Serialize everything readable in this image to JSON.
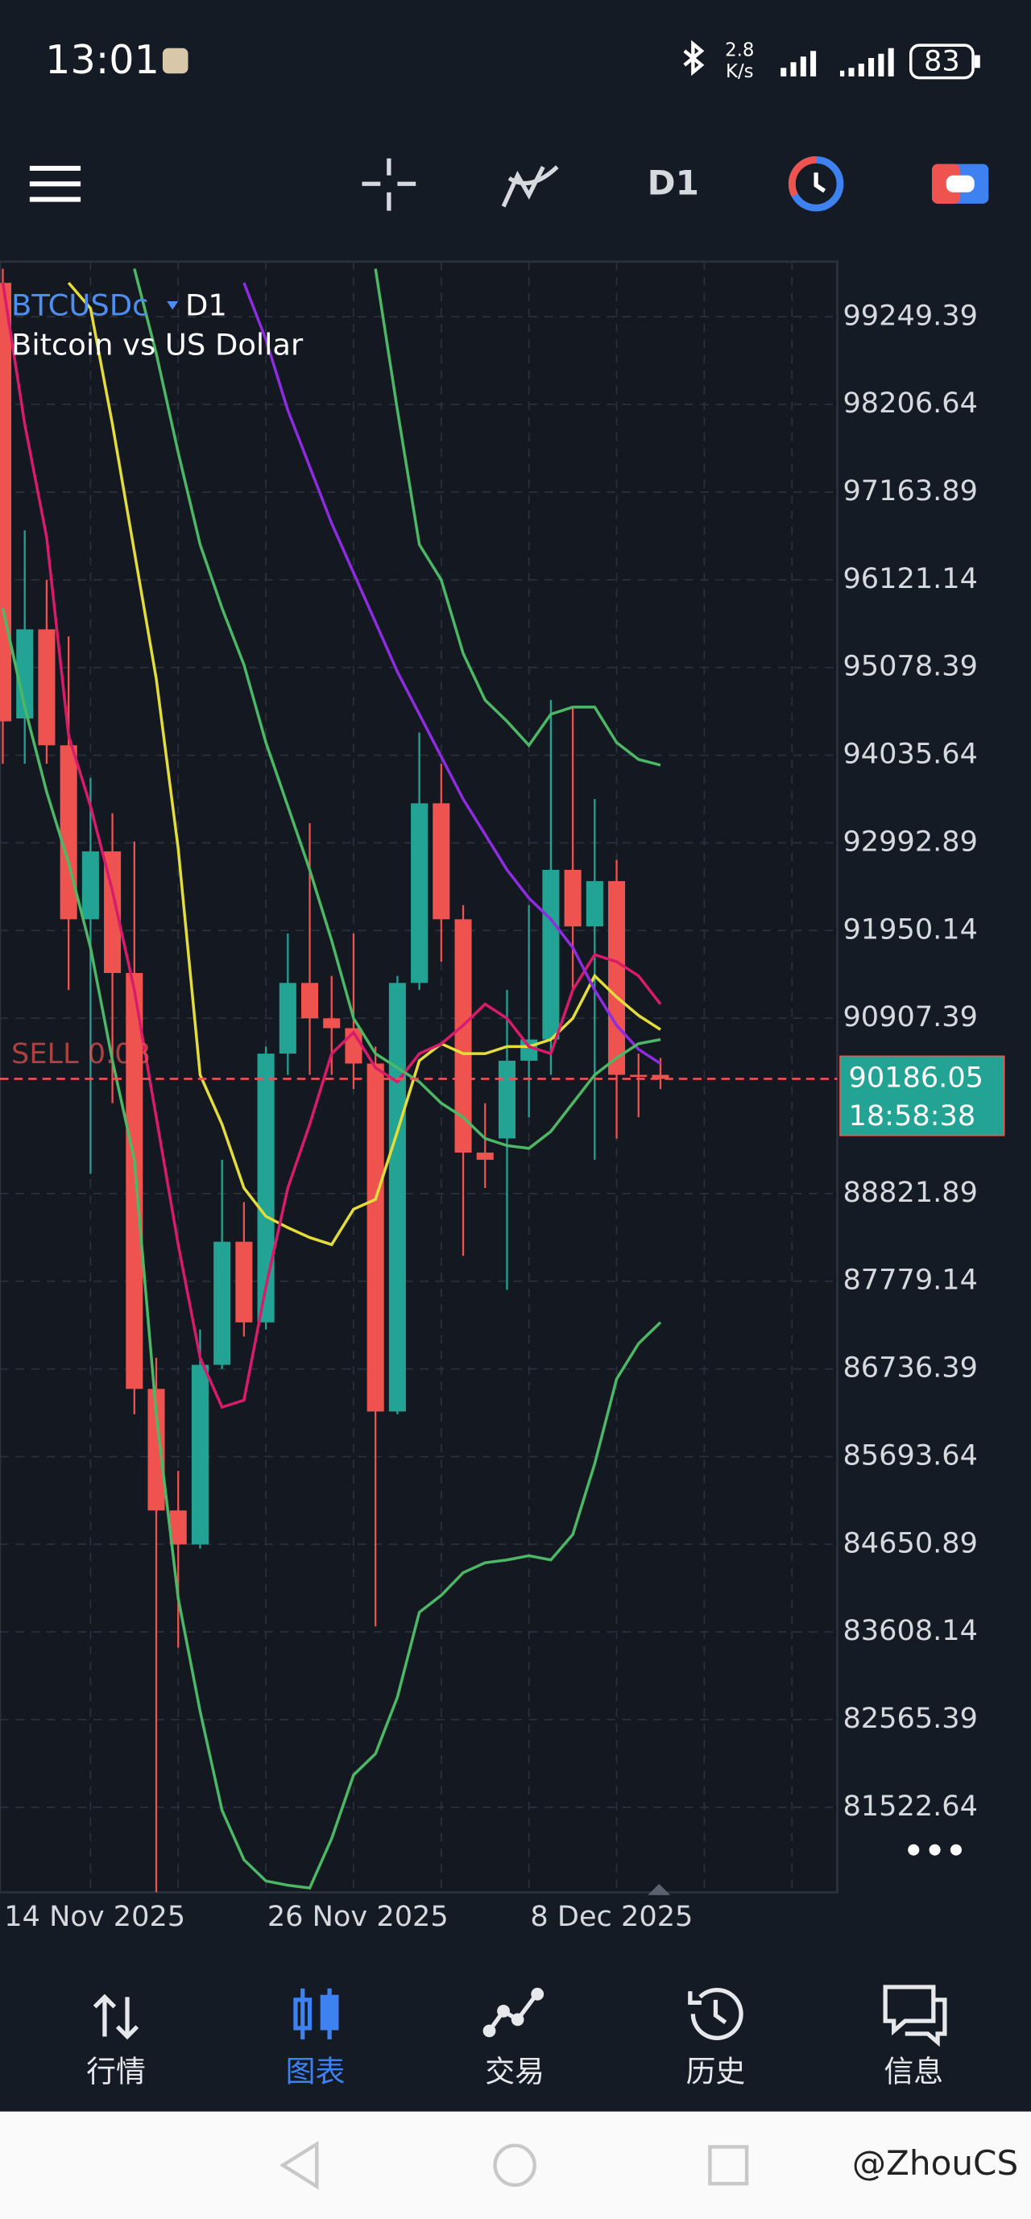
{
  "status_bar": {
    "time": "13:01",
    "net_speed": "2.8",
    "net_unit": "K/s",
    "battery": "83"
  },
  "toolbar": {
    "timeframe": "D1"
  },
  "chart_data": {
    "type": "candlestick",
    "symbol": "BTCUSDc",
    "timeframe": "D1",
    "description": "Bitcoin vs US Dollar",
    "categories": [
      "14 Nov 2025",
      null,
      null,
      null,
      null,
      null,
      null,
      null,
      null,
      null,
      null,
      null,
      "26 Nov 2025",
      null,
      null,
      null,
      null,
      null,
      null,
      null,
      null,
      null,
      null,
      null,
      "8 Dec 2025",
      null,
      null,
      null,
      null,
      null,
      null
    ],
    "open": [
      99653,
      94472,
      95532,
      94153,
      92084,
      92891,
      91445,
      86499,
      85053,
      84649,
      86785,
      88249,
      87290,
      90486,
      91327,
      90906,
      90789,
      90368,
      86230,
      91327,
      93463,
      92084,
      89309,
      89477,
      90402,
      90654,
      92672,
      91999,
      92538,
      90234,
      90234
    ],
    "high": [
      99821,
      96709,
      96120,
      95448,
      93766,
      93345,
      93009,
      86869,
      85524,
      87206,
      89224,
      88720,
      90570,
      91915,
      93227,
      91411,
      91915,
      90570,
      91411,
      94304,
      93934,
      92252,
      89897,
      91243,
      92252,
      94691,
      94607,
      93513,
      92790,
      90486,
      90435
    ],
    "low": [
      93934,
      93934,
      93934,
      91243,
      89056,
      89897,
      86197,
      80512,
      83422,
      84599,
      86735,
      87122,
      87206,
      90234,
      90234,
      90234,
      90065,
      83674,
      86197,
      91243,
      91579,
      88081,
      88888,
      87677,
      89729,
      90234,
      91243,
      89224,
      89477,
      89729,
      90065
    ],
    "close": [
      94438,
      95532,
      94153,
      92084,
      92891,
      91445,
      86499,
      85053,
      84649,
      86785,
      88249,
      87290,
      90486,
      91327,
      90906,
      90789,
      90368,
      86230,
      91327,
      93463,
      92084,
      89309,
      89224,
      90402,
      90654,
      92672,
      91999,
      92538,
      90234,
      90217,
      90186.05
    ],
    "up_color": "#22a393",
    "down_color": "#ef5350",
    "lines": [
      {
        "color": "#e3dc3a",
        "values": [
          null,
          null,
          null,
          99653,
          99350,
          97971,
          96457,
          94943,
          92925,
          90234,
          89645,
          88888,
          88551,
          88417,
          88299,
          88215,
          88636,
          88753,
          89561,
          90402,
          90604,
          90486,
          90486,
          90570,
          90570,
          90654,
          90906,
          91411,
          91159,
          90940,
          90772
        ]
      },
      {
        "color": "#d81b6a",
        "values": [
          99653,
          97971,
          96625,
          94270,
          93429,
          92420,
          91243,
          89729,
          88215,
          86869,
          86281,
          86365,
          87711,
          88888,
          89645,
          90486,
          90738,
          90318,
          90150,
          90486,
          90604,
          90822,
          91075,
          90906,
          90570,
          90486,
          91243,
          91663,
          91579,
          91411,
          91075
        ]
      },
      {
        "color": "#8e2de0",
        "values": [
          null,
          null,
          null,
          null,
          null,
          null,
          null,
          null,
          null,
          null,
          null,
          99653,
          98980,
          98139,
          97466,
          96793,
          96205,
          95616,
          95027,
          94523,
          94018,
          93513,
          93093,
          92672,
          92336,
          92084,
          91747,
          91243,
          90822,
          90537,
          90368
        ]
      },
      {
        "color": "#4cb865",
        "values": [
          null,
          null,
          null,
          null,
          null,
          null,
          null,
          null,
          null,
          null,
          null,
          null,
          null,
          null,
          null,
          null,
          null,
          99821,
          98139,
          96541,
          96120,
          95246,
          94691,
          94438,
          94153,
          94523,
          94607,
          94607,
          94186,
          93985,
          93917
        ]
      },
      {
        "color": "#4cb865",
        "values": [
          null,
          null,
          null,
          null,
          null,
          null,
          99821,
          98812,
          97634,
          96541,
          95784,
          95111,
          94186,
          93429,
          92672,
          91832,
          90906,
          90486,
          90318,
          90150,
          89897,
          89729,
          89477,
          89393,
          89359,
          89561,
          89897,
          90234,
          90435,
          90604,
          90654
        ]
      },
      {
        "color": "#4cb865",
        "values": [
          95784,
          94607,
          93598,
          92757,
          91747,
          90402,
          89224,
          86197,
          84010,
          82665,
          81487,
          80899,
          80647,
          80596,
          80563,
          81151,
          81907,
          82160,
          82833,
          83842,
          84044,
          84313,
          84431,
          84465,
          84515,
          84465,
          84767,
          85608,
          86617,
          87038,
          87290
        ]
      }
    ],
    "ylim": [
      80512,
      99905
    ],
    "yticks": [
      99249.39,
      98206.64,
      97163.89,
      96121.14,
      95078.39,
      94035.64,
      92992.89,
      91950.14,
      90907.39,
      88821.89,
      87779.14,
      86736.39,
      85693.64,
      84650.89,
      83608.14,
      82565.39,
      81522.64
    ],
    "grid": true,
    "position_label": "SELL 0.08",
    "bid": 90186.05,
    "countdown": "18:58:38"
  },
  "bottom_nav": {
    "items": [
      "行情",
      "图表",
      "交易",
      "历史",
      "信息"
    ],
    "active": 1,
    "active_color": "#3d82f0"
  },
  "watermark": "@ZhouCS"
}
